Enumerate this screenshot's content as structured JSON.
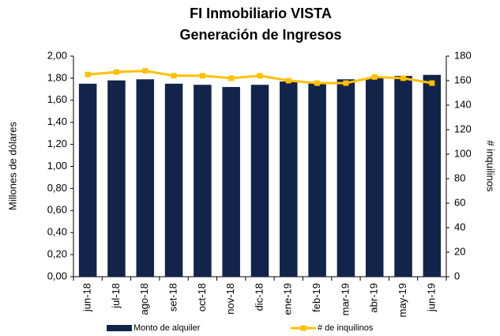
{
  "chart_data": {
    "type": "bar",
    "title": "FI Inmobiliario VISTA",
    "subtitle": "Generación de Ingresos",
    "y_label": "Millones de dólares",
    "y2_label": "# inquilinos",
    "categories": [
      "jun-18",
      "jul-18",
      "ago-18",
      "set-18",
      "oct-18",
      "nov-18",
      "dic-18",
      "ene-19",
      "feb-19",
      "mar-19",
      "abr-19",
      "may-19",
      "jun-19"
    ],
    "series": [
      {
        "name": "Monto de alquiler",
        "type": "bar",
        "color": "#13244a",
        "values": [
          1.75,
          1.78,
          1.79,
          1.75,
          1.74,
          1.72,
          1.74,
          1.77,
          1.76,
          1.79,
          1.8,
          1.82,
          1.83
        ]
      },
      {
        "name": "# de inquilinos",
        "type": "line",
        "axis": "y2",
        "color": "#ffc000",
        "values": [
          165,
          167,
          168,
          164,
          164,
          162,
          164,
          160,
          158,
          158,
          163,
          162,
          158
        ]
      }
    ],
    "ylim": [
      0,
      2
    ],
    "yticks": [
      {
        "value": 0,
        "label": "0,00"
      },
      {
        "value": 0.2,
        "label": "0,20"
      },
      {
        "value": 0.4,
        "label": "0,40"
      },
      {
        "value": 0.6,
        "label": "0,60"
      },
      {
        "value": 0.8,
        "label": "0,80"
      },
      {
        "value": 1,
        "label": "1,00"
      },
      {
        "value": 1.2,
        "label": "1,20"
      },
      {
        "value": 1.4,
        "label": "1,40"
      },
      {
        "value": 1.6,
        "label": "1,60"
      },
      {
        "value": 1.8,
        "label": "1,80"
      },
      {
        "value": 2,
        "label": "2,00"
      }
    ],
    "y2lim": [
      0,
      180
    ],
    "y2ticks": [
      0,
      20,
      40,
      60,
      80,
      100,
      120,
      140,
      160,
      180
    ],
    "legend": "bottom"
  }
}
